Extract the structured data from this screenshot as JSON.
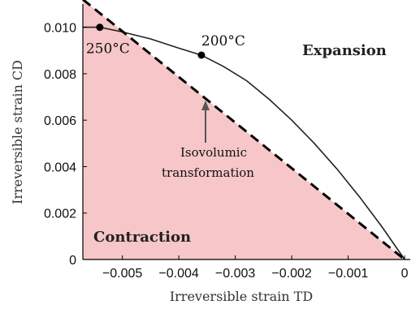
{
  "chart_data": {
    "type": "line",
    "xlabel": "Irreversible strain TD",
    "ylabel": "Irreversible strain CD",
    "xlim": [
      -0.0057,
      0.0001
    ],
    "ylim": [
      0,
      0.011
    ],
    "xticks": [
      -0.005,
      -0.004,
      -0.003,
      -0.002,
      -0.001,
      0
    ],
    "xtick_labels": [
      "−0.005",
      "−0.004",
      "−0.003",
      "−0.002",
      "−0.001",
      "0"
    ],
    "yticks": [
      0,
      0.002,
      0.004,
      0.006,
      0.008,
      0.01
    ],
    "ytick_labels": [
      "0",
      "0.002",
      "0.004",
      "0.006",
      "0.008",
      "0.010"
    ],
    "grid": false,
    "series": [
      {
        "style": "solid",
        "color": "#222222",
        "x": [
          -0.0057,
          -0.0054,
          -0.005,
          -0.0045,
          -0.004,
          -0.0036,
          -0.0032,
          -0.0028,
          -0.0024,
          -0.002,
          -0.0016,
          -0.0012,
          -0.0008,
          -0.0004,
          0.0
        ],
        "y": [
          0.01,
          0.01,
          0.0098,
          0.0095,
          0.0091,
          0.0088,
          0.0083,
          0.0077,
          0.0069,
          0.006,
          0.005,
          0.0039,
          0.0027,
          0.0014,
          0.0
        ]
      },
      {
        "style": "dashed",
        "color": "#000000",
        "x": [
          -0.0057,
          0.0
        ],
        "y": [
          0.0112,
          0.0
        ]
      }
    ],
    "points": [
      {
        "label": "250°C",
        "x": -0.0054,
        "y": 0.01
      },
      {
        "label": "200°C",
        "x": -0.0036,
        "y": 0.0088
      }
    ],
    "region_fill": "#f6c6c8",
    "annotations": {
      "isovolumic_line1": "Isovolumic",
      "isovolumic_line2": "transformation",
      "expansion": "Expansion",
      "contraction": "Contraction"
    }
  }
}
